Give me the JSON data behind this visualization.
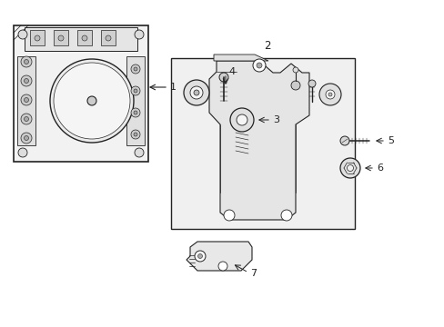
{
  "bg_color": "#ffffff",
  "line_color": "#222222",
  "figsize": [
    4.89,
    3.6
  ],
  "dpi": 100
}
